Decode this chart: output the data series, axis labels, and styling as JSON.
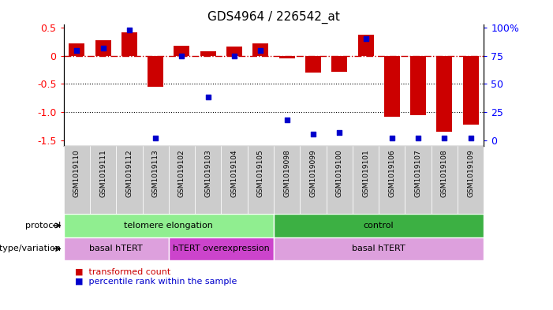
{
  "title": "GDS4964 / 226542_at",
  "samples": [
    "GSM1019110",
    "GSM1019111",
    "GSM1019112",
    "GSM1019113",
    "GSM1019102",
    "GSM1019103",
    "GSM1019104",
    "GSM1019105",
    "GSM1019098",
    "GSM1019099",
    "GSM1019100",
    "GSM1019101",
    "GSM1019106",
    "GSM1019107",
    "GSM1019108",
    "GSM1019109"
  ],
  "bar_values": [
    0.22,
    0.28,
    0.42,
    -0.55,
    0.18,
    0.08,
    0.16,
    0.22,
    -0.05,
    -0.3,
    -0.28,
    0.38,
    -1.08,
    -1.05,
    -1.35,
    -1.22
  ],
  "dot_percentile": [
    80,
    82,
    98,
    2,
    75,
    38,
    75,
    80,
    18,
    5,
    7,
    90,
    2,
    2,
    2,
    2
  ],
  "bar_color": "#cc0000",
  "dot_color": "#0000cc",
  "ylim": [
    -1.6,
    0.55
  ],
  "yticks_left": [
    -1.5,
    -1.0,
    -0.5,
    0.0,
    0.5
  ],
  "yticks_right": [
    0,
    25,
    50,
    75,
    100
  ],
  "hline_y": 0.0,
  "dotted_lines": [
    -0.5,
    -1.0
  ],
  "protocol_labels": [
    "telomere elongation",
    "control"
  ],
  "protocol_ranges": [
    [
      0,
      8
    ],
    [
      8,
      16
    ]
  ],
  "protocol_colors": [
    "#90EE90",
    "#3CB043"
  ],
  "genotype_labels": [
    "basal hTERT",
    "hTERT overexpression",
    "basal hTERT"
  ],
  "genotype_ranges": [
    [
      0,
      4
    ],
    [
      4,
      8
    ],
    [
      8,
      16
    ]
  ],
  "genotype_colors": [
    "#DDA0DD",
    "#CC44CC",
    "#DDA0DD"
  ],
  "legend_items": [
    "transformed count",
    "percentile rank within the sample"
  ],
  "legend_colors": [
    "#cc0000",
    "#0000cc"
  ],
  "label_bg_color": "#cccccc",
  "background_color": "#ffffff",
  "plot_bg_color": "#ffffff"
}
